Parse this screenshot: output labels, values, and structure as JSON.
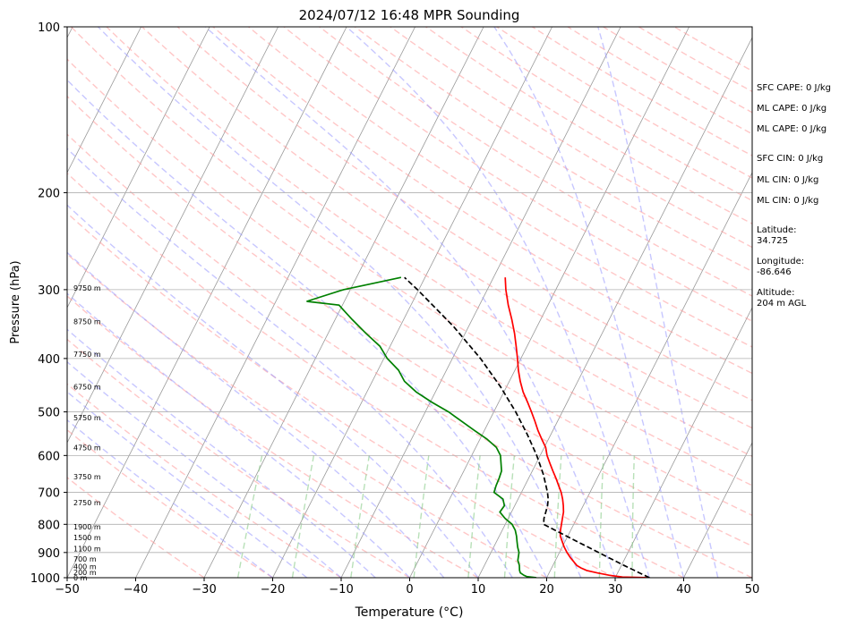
{
  "chart_data": {
    "type": "line",
    "subtype": "skew-t log-p",
    "title": "2024/07/12 16:48 MPR Sounding",
    "xlabel": "Temperature (°C)",
    "ylabel": "Pressure (hPa)",
    "xlim": [
      -50,
      50
    ],
    "ylim": [
      1000,
      100
    ],
    "y_scale": "log",
    "x_ticks": [
      "−50",
      "−40",
      "−30",
      "−20",
      "−10",
      "0",
      "10",
      "20",
      "30",
      "40",
      "50"
    ],
    "y_ticks": [
      "100",
      "200",
      "300",
      "400",
      "500",
      "600",
      "700",
      "800",
      "900",
      "1000"
    ],
    "grid": true,
    "colors": {
      "temperature": "#ff0000",
      "dewpoint": "#008000",
      "parcel": "#000000",
      "isotherms": "#999999",
      "dry_adiabats": "#ff9999",
      "moist_adiabats": "#9999ff",
      "mixing_ratio": "#88cc88"
    },
    "series": [
      {
        "key": "temperature",
        "points": [
          [
            1000,
            35.0
          ],
          [
            997,
            31.0
          ],
          [
            990,
            29.0
          ],
          [
            980,
            27.0
          ],
          [
            970,
            25.3
          ],
          [
            960,
            24.3
          ],
          [
            950,
            23.5
          ],
          [
            940,
            23.0
          ],
          [
            930,
            22.5
          ],
          [
            920,
            22.0
          ],
          [
            900,
            21.1
          ],
          [
            880,
            20.3
          ],
          [
            860,
            19.6
          ],
          [
            840,
            18.9
          ],
          [
            820,
            18.5
          ],
          [
            800,
            18.2
          ],
          [
            780,
            17.9
          ],
          [
            760,
            17.6
          ],
          [
            740,
            17.1
          ],
          [
            720,
            16.5
          ],
          [
            700,
            15.8
          ],
          [
            680,
            14.9
          ],
          [
            660,
            14.0
          ],
          [
            640,
            13.0
          ],
          [
            620,
            12.0
          ],
          [
            600,
            11.0
          ],
          [
            580,
            10.2
          ],
          [
            560,
            9.0
          ],
          [
            540,
            7.8
          ],
          [
            520,
            6.7
          ],
          [
            500,
            5.5
          ],
          [
            480,
            4.2
          ],
          [
            460,
            2.8
          ],
          [
            440,
            1.6
          ],
          [
            420,
            0.5
          ],
          [
            400,
            -0.5
          ],
          [
            380,
            -1.6
          ],
          [
            360,
            -2.8
          ],
          [
            340,
            -4.2
          ],
          [
            320,
            -5.8
          ],
          [
            300,
            -7.3
          ],
          [
            285,
            -8.3
          ]
        ]
      },
      {
        "key": "dewpoint",
        "points": [
          [
            1000,
            18.5
          ],
          [
            995,
            17.0
          ],
          [
            990,
            16.5
          ],
          [
            980,
            15.8
          ],
          [
            970,
            15.5
          ],
          [
            950,
            15.1
          ],
          [
            930,
            14.5
          ],
          [
            900,
            14.1
          ],
          [
            880,
            13.5
          ],
          [
            860,
            13.0
          ],
          [
            840,
            12.5
          ],
          [
            820,
            11.9
          ],
          [
            800,
            11.0
          ],
          [
            780,
            9.5
          ],
          [
            760,
            8.3
          ],
          [
            740,
            8.5
          ],
          [
            720,
            7.8
          ],
          [
            700,
            6.0
          ],
          [
            680,
            5.8
          ],
          [
            660,
            5.7
          ],
          [
            640,
            5.5
          ],
          [
            600,
            4.2
          ],
          [
            580,
            3.0
          ],
          [
            560,
            1.0
          ],
          [
            540,
            -1.5
          ],
          [
            520,
            -4.0
          ],
          [
            500,
            -6.6
          ],
          [
            480,
            -9.8
          ],
          [
            460,
            -12.8
          ],
          [
            440,
            -15.3
          ],
          [
            420,
            -17.0
          ],
          [
            400,
            -19.5
          ],
          [
            380,
            -21.5
          ],
          [
            360,
            -24.5
          ],
          [
            340,
            -27.5
          ],
          [
            320,
            -30.5
          ],
          [
            315,
            -35.5
          ],
          [
            300,
            -31.0
          ],
          [
            293,
            -27.5
          ],
          [
            285,
            -23.5
          ]
        ]
      },
      {
        "key": "parcel",
        "style": "dashed",
        "points": [
          [
            1000,
            35.0
          ],
          [
            950,
            30.4
          ],
          [
            900,
            25.7
          ],
          [
            850,
            20.8
          ],
          [
            800,
            15.6
          ],
          [
            780,
            15.2
          ],
          [
            760,
            15.0
          ],
          [
            740,
            14.8
          ],
          [
            720,
            14.4
          ],
          [
            700,
            13.8
          ],
          [
            650,
            11.9
          ],
          [
            600,
            9.5
          ],
          [
            550,
            6.6
          ],
          [
            500,
            3.2
          ],
          [
            450,
            -0.9
          ],
          [
            400,
            -5.9
          ],
          [
            350,
            -12.2
          ],
          [
            300,
            -20.2
          ],
          [
            285,
            -23.0
          ]
        ]
      }
    ],
    "height_labels": [
      {
        "p": 1000,
        "label": "0 m"
      },
      {
        "p": 977,
        "label": "200 m"
      },
      {
        "p": 955,
        "label": "400 m"
      },
      {
        "p": 924,
        "label": "700 m"
      },
      {
        "p": 885,
        "label": "1100 m"
      },
      {
        "p": 845,
        "label": "1500 m"
      },
      {
        "p": 808,
        "label": "1900 m"
      },
      {
        "p": 730,
        "label": "2750 m"
      },
      {
        "p": 655,
        "label": "3750 m"
      },
      {
        "p": 580,
        "label": "4750 m"
      },
      {
        "p": 512,
        "label": "5750 m"
      },
      {
        "p": 450,
        "label": "6750 m"
      },
      {
        "p": 393,
        "label": "7750 m"
      },
      {
        "p": 343,
        "label": "8750 m"
      },
      {
        "p": 298,
        "label": "9750 m"
      }
    ]
  },
  "side_panel": {
    "sfc_cape": "SFC CAPE: 0 J/kg",
    "ml_cape_1": "ML CAPE: 0 J/kg",
    "ml_cape_2": "ML CAPE: 0 J/kg",
    "sfc_cin": "SFC CIN: 0 J/kg",
    "ml_cin_1": "ML CIN: 0 J/kg",
    "ml_cin_2": "ML CIN: 0 J/kg",
    "latitude": "Latitude:\n34.725",
    "longitude": "Longitude:\n-86.646",
    "altitude": "Altitude:\n204 m AGL"
  }
}
